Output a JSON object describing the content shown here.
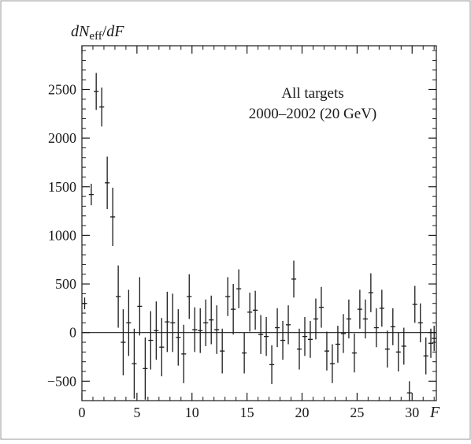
{
  "colors": {
    "ink": "#1a1a1a",
    "background": "#ffffff"
  },
  "chart_data": {
    "type": "scatter",
    "style": "error-bars",
    "ylabel_parts": {
      "d1": "d",
      "N": "N",
      "sub": "eff",
      "slash": "/",
      "d2": "d",
      "F": "F"
    },
    "xlabel": "F",
    "annotation": [
      "All targets",
      "2000–2002 (20 GeV)"
    ],
    "xlim": [
      0,
      32.2
    ],
    "ylim": [
      -700,
      2950
    ],
    "xticks": [
      0,
      5,
      10,
      15,
      20,
      25,
      30
    ],
    "yticks": [
      -500,
      0,
      500,
      1000,
      1500,
      2000,
      2500
    ],
    "grid": false,
    "reference_line": 0,
    "x_half_width": 0.22,
    "points": [
      {
        "x": 0.25,
        "y": 300,
        "err": 60
      },
      {
        "x": 0.85,
        "y": 1420,
        "err": 110
      },
      {
        "x": 1.3,
        "y": 2480,
        "err": 190
      },
      {
        "x": 1.8,
        "y": 2320,
        "err": 200
      },
      {
        "x": 2.3,
        "y": 1540,
        "err": 270
      },
      {
        "x": 2.8,
        "y": 1190,
        "err": 300
      },
      {
        "x": 3.3,
        "y": 370,
        "err": 320
      },
      {
        "x": 3.75,
        "y": -100,
        "err": 340
      },
      {
        "x": 4.25,
        "y": 100,
        "err": 340
      },
      {
        "x": 4.75,
        "y": -320,
        "err": 360
      },
      {
        "x": 5.25,
        "y": 270,
        "err": 300
      },
      {
        "x": 5.75,
        "y": -370,
        "err": 320
      },
      {
        "x": 6.25,
        "y": -80,
        "err": 300
      },
      {
        "x": 6.75,
        "y": 20,
        "err": 300
      },
      {
        "x": 7.25,
        "y": -150,
        "err": 300
      },
      {
        "x": 7.75,
        "y": 110,
        "err": 310
      },
      {
        "x": 8.25,
        "y": 100,
        "err": 300
      },
      {
        "x": 8.75,
        "y": -50,
        "err": 290
      },
      {
        "x": 9.25,
        "y": -220,
        "err": 300
      },
      {
        "x": 9.75,
        "y": 370,
        "err": 230
      },
      {
        "x": 10.25,
        "y": 30,
        "err": 230
      },
      {
        "x": 10.75,
        "y": 20,
        "err": 230
      },
      {
        "x": 11.25,
        "y": 100,
        "err": 240
      },
      {
        "x": 11.75,
        "y": 130,
        "err": 250
      },
      {
        "x": 12.25,
        "y": 30,
        "err": 250
      },
      {
        "x": 12.75,
        "y": -190,
        "err": 230
      },
      {
        "x": 13.25,
        "y": 370,
        "err": 200
      },
      {
        "x": 13.75,
        "y": 240,
        "err": 260
      },
      {
        "x": 14.25,
        "y": 450,
        "err": 200
      },
      {
        "x": 14.75,
        "y": -210,
        "err": 210
      },
      {
        "x": 15.25,
        "y": 210,
        "err": 200
      },
      {
        "x": 15.75,
        "y": 230,
        "err": 200
      },
      {
        "x": 16.25,
        "y": -20,
        "err": 200
      },
      {
        "x": 16.75,
        "y": -40,
        "err": 200
      },
      {
        "x": 17.25,
        "y": -330,
        "err": 200
      },
      {
        "x": 17.75,
        "y": 50,
        "err": 200
      },
      {
        "x": 18.25,
        "y": -80,
        "err": 200
      },
      {
        "x": 18.75,
        "y": 80,
        "err": 200
      },
      {
        "x": 19.25,
        "y": 550,
        "err": 190
      },
      {
        "x": 19.75,
        "y": -170,
        "err": 210
      },
      {
        "x": 20.25,
        "y": -40,
        "err": 200
      },
      {
        "x": 20.75,
        "y": -70,
        "err": 190
      },
      {
        "x": 21.25,
        "y": 140,
        "err": 210
      },
      {
        "x": 21.75,
        "y": 260,
        "err": 210
      },
      {
        "x": 22.25,
        "y": -190,
        "err": 200
      },
      {
        "x": 22.75,
        "y": -320,
        "err": 200
      },
      {
        "x": 23.25,
        "y": -120,
        "err": 190
      },
      {
        "x": 23.75,
        "y": -10,
        "err": 200
      },
      {
        "x": 24.25,
        "y": 140,
        "err": 200
      },
      {
        "x": 24.75,
        "y": -210,
        "err": 200
      },
      {
        "x": 25.25,
        "y": 240,
        "err": 200
      },
      {
        "x": 25.75,
        "y": 140,
        "err": 200
      },
      {
        "x": 26.25,
        "y": 410,
        "err": 200
      },
      {
        "x": 26.75,
        "y": 50,
        "err": 200
      },
      {
        "x": 27.25,
        "y": 250,
        "err": 190
      },
      {
        "x": 27.75,
        "y": -170,
        "err": 190
      },
      {
        "x": 28.25,
        "y": 60,
        "err": 190
      },
      {
        "x": 28.75,
        "y": -200,
        "err": 200
      },
      {
        "x": 29.25,
        "y": -140,
        "err": 190
      },
      {
        "x": 29.75,
        "y": -620,
        "err": 120
      },
      {
        "x": 30.25,
        "y": 290,
        "err": 190
      },
      {
        "x": 30.75,
        "y": 100,
        "err": 200
      },
      {
        "x": 31.25,
        "y": -240,
        "err": 190
      },
      {
        "x": 31.7,
        "y": -110,
        "err": 150
      },
      {
        "x": 32.0,
        "y": -60,
        "err": 130
      }
    ]
  }
}
